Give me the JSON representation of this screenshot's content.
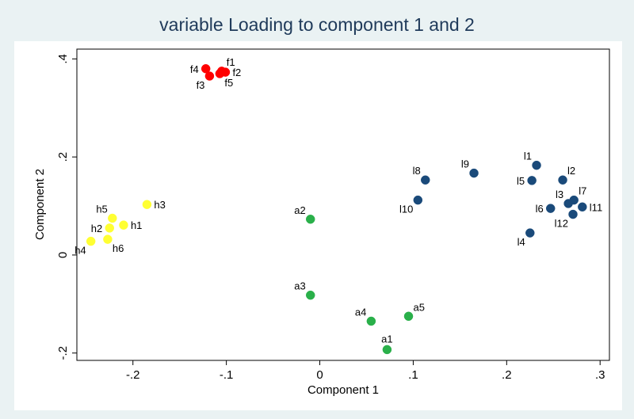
{
  "chart_data": {
    "type": "scatter",
    "title": "variable Loading to component 1 and 2",
    "xlabel": "Component 1",
    "ylabel": "Component 2",
    "xlim": [
      -0.26,
      0.31
    ],
    "ylim": [
      -0.215,
      0.42
    ],
    "xticks": [
      {
        "value": -0.2,
        "label": "-.2"
      },
      {
        "value": -0.1,
        "label": "-.1"
      },
      {
        "value": 0,
        "label": "0"
      },
      {
        "value": 0.1,
        "label": ".1"
      },
      {
        "value": 0.2,
        "label": ".2"
      },
      {
        "value": 0.3,
        "label": ".3"
      }
    ],
    "yticks": [
      {
        "value": -0.2,
        "label": "-.2"
      },
      {
        "value": 0,
        "label": "0"
      },
      {
        "value": 0.2,
        "label": ".2"
      },
      {
        "value": 0.4,
        "label": ".4"
      }
    ],
    "grid": false,
    "series": [
      {
        "name": "f",
        "color": "#ff0000",
        "points": [
          {
            "label": "f1",
            "x": -0.105,
            "y": 0.375,
            "pos": "ne"
          },
          {
            "label": "f2",
            "x": -0.101,
            "y": 0.373,
            "pos": "e"
          },
          {
            "label": "f3",
            "x": -0.118,
            "y": 0.365,
            "pos": "sw"
          },
          {
            "label": "f4",
            "x": -0.122,
            "y": 0.38,
            "pos": "w"
          },
          {
            "label": "f5",
            "x": -0.107,
            "y": 0.37,
            "pos": "se"
          }
        ]
      },
      {
        "name": "h",
        "color": "#ffff33",
        "points": [
          {
            "label": "h1",
            "x": -0.21,
            "y": 0.061,
            "pos": "e"
          },
          {
            "label": "h2",
            "x": -0.225,
            "y": 0.055,
            "pos": "w"
          },
          {
            "label": "h3",
            "x": -0.185,
            "y": 0.103,
            "pos": "e"
          },
          {
            "label": "h4",
            "x": -0.245,
            "y": 0.028,
            "pos": "sw"
          },
          {
            "label": "h5",
            "x": -0.222,
            "y": 0.075,
            "pos": "nw"
          },
          {
            "label": "h6",
            "x": -0.227,
            "y": 0.032,
            "pos": "se"
          }
        ]
      },
      {
        "name": "a",
        "color": "#2ab04a",
        "points": [
          {
            "label": "a1",
            "x": 0.072,
            "y": -0.193,
            "pos": "n"
          },
          {
            "label": "a2",
            "x": -0.01,
            "y": 0.073,
            "pos": "nw"
          },
          {
            "label": "a3",
            "x": -0.01,
            "y": -0.082,
            "pos": "nw"
          },
          {
            "label": "a4",
            "x": 0.055,
            "y": -0.135,
            "pos": "nw"
          },
          {
            "label": "a5",
            "x": 0.095,
            "y": -0.125,
            "pos": "ne"
          }
        ]
      },
      {
        "name": "l",
        "color": "#1a4a7a",
        "points": [
          {
            "label": "l1",
            "x": 0.232,
            "y": 0.183,
            "pos": "nw"
          },
          {
            "label": "l2",
            "x": 0.26,
            "y": 0.153,
            "pos": "ne"
          },
          {
            "label": "l3",
            "x": 0.266,
            "y": 0.105,
            "pos": "nw"
          },
          {
            "label": "l4",
            "x": 0.225,
            "y": 0.045,
            "pos": "sw"
          },
          {
            "label": "l5",
            "x": 0.227,
            "y": 0.152,
            "pos": "w"
          },
          {
            "label": "l6",
            "x": 0.247,
            "y": 0.095,
            "pos": "w"
          },
          {
            "label": "l7",
            "x": 0.272,
            "y": 0.112,
            "pos": "ne"
          },
          {
            "label": "l8",
            "x": 0.113,
            "y": 0.153,
            "pos": "nw"
          },
          {
            "label": "l9",
            "x": 0.165,
            "y": 0.167,
            "pos": "nw"
          },
          {
            "label": "l10",
            "x": 0.105,
            "y": 0.112,
            "pos": "sw"
          },
          {
            "label": "l11",
            "x": 0.281,
            "y": 0.098,
            "pos": "e"
          },
          {
            "label": "l12",
            "x": 0.271,
            "y": 0.083,
            "pos": "sw"
          }
        ]
      }
    ]
  }
}
